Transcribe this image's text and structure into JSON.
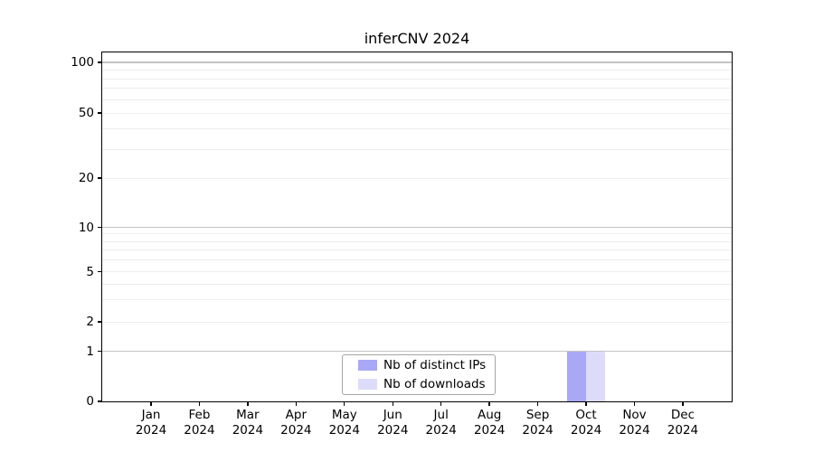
{
  "chart_data": {
    "type": "bar",
    "title": "inferCNV 2024",
    "categories": [
      "Jan 2024",
      "Feb 2024",
      "Mar 2024",
      "Apr 2024",
      "May 2024",
      "Jun 2024",
      "Jul 2024",
      "Aug 2024",
      "Sep 2024",
      "Oct 2024",
      "Nov 2024",
      "Dec 2024"
    ],
    "x_tick_labels": [
      {
        "month": "Jan",
        "year": "2024"
      },
      {
        "month": "Feb",
        "year": "2024"
      },
      {
        "month": "Mar",
        "year": "2024"
      },
      {
        "month": "Apr",
        "year": "2024"
      },
      {
        "month": "May",
        "year": "2024"
      },
      {
        "month": "Jun",
        "year": "2024"
      },
      {
        "month": "Jul",
        "year": "2024"
      },
      {
        "month": "Aug",
        "year": "2024"
      },
      {
        "month": "Sep",
        "year": "2024"
      },
      {
        "month": "Oct",
        "year": "2024"
      },
      {
        "month": "Nov",
        "year": "2024"
      },
      {
        "month": "Dec",
        "year": "2024"
      }
    ],
    "series": [
      {
        "name": "Nb of distinct IPs",
        "color": "#a8a8f7",
        "values": [
          0,
          0,
          0,
          0,
          0,
          0,
          0,
          0,
          0,
          1,
          0,
          0
        ]
      },
      {
        "name": "Nb of downloads",
        "color": "#dcdcfa",
        "values": [
          0,
          0,
          0,
          0,
          0,
          0,
          0,
          0,
          0,
          1,
          0,
          0
        ]
      }
    ],
    "y_axis": {
      "scale": "symlog",
      "tick_labels": [
        "0",
        "1",
        "2",
        "5",
        "10",
        "20",
        "50",
        "100"
      ],
      "tick_values": [
        0,
        1,
        2,
        5,
        10,
        20,
        50,
        100
      ],
      "major_gridline_values": [
        1,
        10,
        100
      ],
      "minor_gridline_values": [
        2,
        3,
        4,
        5,
        6,
        7,
        8,
        9,
        20,
        30,
        40,
        50,
        60,
        70,
        80,
        90
      ]
    },
    "ylim": [
      0,
      115
    ],
    "grid": true,
    "legend": {
      "position": "lower center inside",
      "items": [
        "Nb of distinct IPs",
        "Nb of downloads"
      ]
    }
  }
}
